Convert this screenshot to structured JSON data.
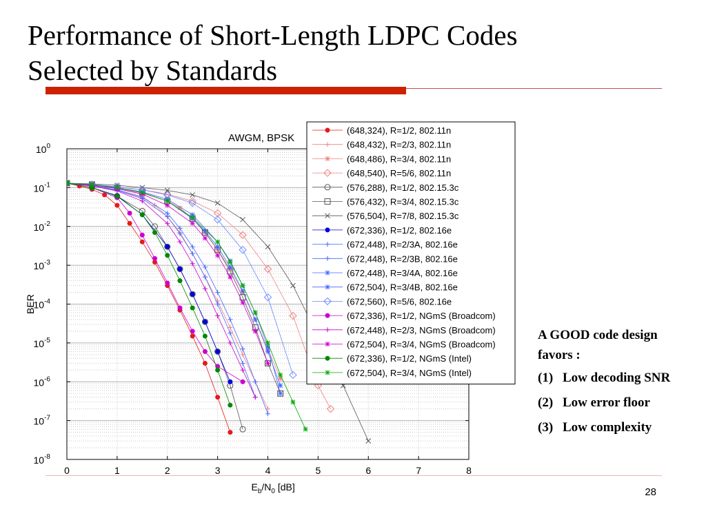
{
  "slide": {
    "title_line1": "Performance of Short-Length LDPC Codes",
    "title_line2": "Selected by Standards",
    "page_number": "28",
    "accent_color": "#cc2200"
  },
  "side_note": {
    "heading": "A GOOD code design favors :",
    "items": [
      {
        "num": "(1)",
        "text": "Low decoding SNR"
      },
      {
        "num": "(2)",
        "text": "Low error floor"
      },
      {
        "num": "(3)",
        "text": "Low complexity"
      }
    ]
  },
  "chart_data": {
    "type": "line",
    "title": "AWGM, BPSK",
    "xlabel": "Eb/N0 [dB]",
    "ylabel": "BER",
    "xlim": [
      0,
      8
    ],
    "ylim": [
      1e-08,
      1
    ],
    "y_scale": "log",
    "grid": true,
    "legend_position": "top-right",
    "x_ticks": [
      "0",
      "1",
      "2",
      "3",
      "4",
      "5",
      "6",
      "7",
      "8"
    ],
    "y_ticks": [
      {
        "base": "10",
        "exp": "0"
      },
      {
        "base": "10",
        "exp": "-1"
      },
      {
        "base": "10",
        "exp": "-2"
      },
      {
        "base": "10",
        "exp": "-3"
      },
      {
        "base": "10",
        "exp": "-4"
      },
      {
        "base": "10",
        "exp": "-5"
      },
      {
        "base": "10",
        "exp": "-6"
      },
      {
        "base": "10",
        "exp": "-7"
      },
      {
        "base": "10",
        "exp": "-8"
      }
    ],
    "series": [
      {
        "name": "(648,324), R=1/2, 802.11n",
        "color": "#e41a1c",
        "marker": "dot",
        "x": [
          0,
          0.25,
          0.5,
          0.75,
          1.0,
          1.25,
          1.5,
          1.75,
          2.0,
          2.25,
          2.5,
          2.75,
          3.0,
          3.25
        ],
        "y": [
          0.13,
          0.11,
          0.09,
          0.065,
          0.035,
          0.012,
          0.004,
          0.0012,
          0.0003,
          7e-05,
          1.5e-05,
          3e-06,
          4e-07,
          5e-08
        ]
      },
      {
        "name": "(648,432), R=2/3, 802.11n",
        "color": "#f08080",
        "marker": "plus",
        "x": [
          0,
          0.5,
          1.0,
          1.5,
          1.75,
          2.0,
          2.25,
          2.5,
          2.75,
          3.0,
          3.25,
          3.5,
          3.75,
          4.0
        ],
        "y": [
          0.13,
          0.11,
          0.085,
          0.055,
          0.035,
          0.018,
          0.007,
          0.002,
          0.0005,
          0.00012,
          2.5e-05,
          5e-06,
          1e-06,
          2e-07
        ]
      },
      {
        "name": "(648,486), R=3/4, 802.11n",
        "color": "#f08080",
        "marker": "star",
        "x": [
          0,
          0.5,
          1.0,
          1.5,
          2.0,
          2.25,
          2.5,
          2.75,
          3.0,
          3.25,
          3.5,
          3.75,
          4.0,
          4.25
        ],
        "y": [
          0.13,
          0.115,
          0.095,
          0.072,
          0.045,
          0.03,
          0.016,
          0.007,
          0.0025,
          0.0008,
          0.0002,
          4e-05,
          7e-06,
          1.2e-06
        ]
      },
      {
        "name": "(648,540), R=5/6, 802.11n",
        "color": "#f08080",
        "marker": "diamond",
        "x": [
          0,
          0.5,
          1.0,
          1.5,
          2.0,
          2.5,
          3.0,
          3.5,
          4.0,
          4.5,
          5.0,
          5.25
        ],
        "y": [
          0.13,
          0.12,
          0.105,
          0.088,
          0.068,
          0.045,
          0.022,
          0.006,
          0.0008,
          5e-05,
          8e-07,
          2e-07
        ]
      },
      {
        "name": "(576,288), R=1/2, 802.15.3c",
        "color": "#555555",
        "marker": "circle",
        "x": [
          0,
          0.5,
          1.0,
          1.5,
          1.75,
          2.0,
          2.25,
          2.5,
          2.75,
          3.0,
          3.25,
          3.5
        ],
        "y": [
          0.13,
          0.1,
          0.06,
          0.025,
          0.01,
          0.003,
          0.0008,
          0.00018,
          3.5e-05,
          6e-06,
          8e-07,
          6e-08
        ]
      },
      {
        "name": "(576,432), R=3/4, 802.15.3c",
        "color": "#555555",
        "marker": "square",
        "x": [
          0,
          0.5,
          1.0,
          1.5,
          2.0,
          2.5,
          2.75,
          3.0,
          3.25,
          3.5,
          3.75,
          4.0,
          4.25
        ],
        "y": [
          0.13,
          0.12,
          0.1,
          0.075,
          0.045,
          0.016,
          0.007,
          0.0025,
          0.0007,
          0.00015,
          2.5e-05,
          3e-06,
          5e-07
        ]
      },
      {
        "name": "(576,504), R=7/8, 802.15.3c",
        "color": "#555555",
        "marker": "x",
        "x": [
          0,
          0.5,
          1.0,
          1.5,
          2.0,
          2.5,
          3.0,
          3.5,
          4.0,
          4.5,
          5.0,
          5.5,
          6.0
        ],
        "y": [
          0.13,
          0.125,
          0.115,
          0.1,
          0.085,
          0.065,
          0.04,
          0.015,
          0.003,
          0.0003,
          1.5e-05,
          8e-07,
          3e-08
        ]
      },
      {
        "name": "(672,336), R=1/2, 802.16e",
        "color": "#0000dd",
        "marker": "dot",
        "x": [
          0,
          0.5,
          1.0,
          1.5,
          2.0,
          2.25,
          2.5,
          2.75,
          3.0,
          3.25
        ],
        "y": [
          0.13,
          0.1,
          0.062,
          0.02,
          0.003,
          0.0008,
          0.00018,
          3.5e-05,
          6e-06,
          1e-06
        ]
      },
      {
        "name": "(672,448), R=2/3A, 802.16e",
        "color": "#4466ff",
        "marker": "plus",
        "x": [
          0,
          0.5,
          1.0,
          1.5,
          2.0,
          2.25,
          2.5,
          2.75,
          3.0,
          3.25,
          3.5,
          3.75
        ],
        "y": [
          0.13,
          0.11,
          0.085,
          0.052,
          0.018,
          0.0065,
          0.002,
          0.0005,
          0.0001,
          1.8e-05,
          3e-06,
          4e-07
        ]
      },
      {
        "name": "(672,448), R=2/3B, 802.16e",
        "color": "#4466ff",
        "marker": "plus",
        "x": [
          0,
          0.5,
          1.0,
          1.5,
          2.0,
          2.25,
          2.5,
          2.75,
          3.0,
          3.25,
          3.5,
          3.75,
          4.0
        ],
        "y": [
          0.13,
          0.112,
          0.088,
          0.058,
          0.022,
          0.009,
          0.003,
          0.0009,
          0.0002,
          4e-05,
          7e-06,
          1e-06,
          1.5e-07
        ]
      },
      {
        "name": "(672,448), R=3/4A, 802.16e",
        "color": "#4466ff",
        "marker": "star",
        "x": [
          0,
          0.5,
          1.0,
          1.5,
          2.0,
          2.5,
          2.75,
          3.0,
          3.25,
          3.5,
          3.75,
          4.0,
          4.25
        ],
        "y": [
          0.13,
          0.118,
          0.098,
          0.075,
          0.045,
          0.016,
          0.0075,
          0.003,
          0.0009,
          0.00022,
          4e-05,
          6e-06,
          8e-07
        ]
      },
      {
        "name": "(672,504), R=3/4B, 802.16e",
        "color": "#4466ff",
        "marker": "star",
        "x": [
          0,
          0.5,
          1.0,
          1.5,
          2.0,
          2.5,
          3.0,
          3.25,
          3.5,
          3.75,
          4.0,
          4.25
        ],
        "y": [
          0.13,
          0.12,
          0.1,
          0.078,
          0.05,
          0.02,
          0.004,
          0.0013,
          0.0003,
          6e-05,
          8e-06,
          5e-07
        ]
      },
      {
        "name": "(672,560), R=5/6, 802.16e",
        "color": "#6688ff",
        "marker": "diamond",
        "x": [
          0,
          0.5,
          1.0,
          1.5,
          2.0,
          2.5,
          3.0,
          3.5,
          4.0,
          4.5
        ],
        "y": [
          0.13,
          0.12,
          0.105,
          0.088,
          0.065,
          0.04,
          0.015,
          0.0025,
          0.00015,
          1.5e-06
        ]
      },
      {
        "name": "(672,336), R=1/2, NGmS (Broadcom)",
        "color": "#cc00cc",
        "marker": "dot",
        "x": [
          0,
          0.5,
          1.0,
          1.25,
          1.5,
          1.75,
          2.0,
          2.25,
          2.5,
          2.75,
          3.0,
          3.5
        ],
        "y": [
          0.13,
          0.1,
          0.055,
          0.022,
          0.006,
          0.0015,
          0.00035,
          8e-05,
          2e-05,
          6e-06,
          2.5e-06,
          1e-06
        ]
      },
      {
        "name": "(672,448), R=2/3, NGmS (Broadcom)",
        "color": "#cc00cc",
        "marker": "plus",
        "x": [
          0,
          0.5,
          1.0,
          1.5,
          2.0,
          2.25,
          2.5,
          2.75,
          3.0,
          3.25,
          3.5,
          3.75
        ],
        "y": [
          0.13,
          0.11,
          0.082,
          0.045,
          0.012,
          0.004,
          0.0011,
          0.00025,
          5e-05,
          1e-05,
          2e-06,
          4e-07
        ]
      },
      {
        "name": "(672,504), R=3/4, NGmS (Broadcom)",
        "color": "#cc00cc",
        "marker": "star",
        "x": [
          0,
          0.5,
          1.0,
          1.5,
          2.0,
          2.5,
          2.75,
          3.0,
          3.25,
          3.5,
          3.75,
          4.0
        ],
        "y": [
          0.13,
          0.116,
          0.094,
          0.068,
          0.035,
          0.012,
          0.005,
          0.0018,
          0.0005,
          0.00011,
          2e-05,
          3e-06
        ]
      },
      {
        "name": "(672,336), R=1/2, NGmS (Intel)",
        "color": "#008800",
        "marker": "dot",
        "x": [
          0,
          0.5,
          1.0,
          1.5,
          1.75,
          2.0,
          2.25,
          2.5,
          2.75,
          3.0,
          3.25
        ],
        "y": [
          0.13,
          0.1,
          0.06,
          0.02,
          0.007,
          0.0018,
          0.0004,
          8e-05,
          1.5e-05,
          2e-06,
          2.5e-07
        ]
      },
      {
        "name": "(672,504), R=3/4, NGmS (Intel)",
        "color": "#00aa00",
        "marker": "star",
        "x": [
          0,
          0.5,
          1.0,
          1.5,
          2.0,
          2.5,
          3.0,
          3.25,
          3.5,
          3.75,
          4.0,
          4.25,
          4.5,
          4.75
        ],
        "y": [
          0.13,
          0.12,
          0.1,
          0.075,
          0.045,
          0.017,
          0.004,
          0.0012,
          0.0003,
          6e-05,
          1e-05,
          1.5e-06,
          3e-07,
          6e-08
        ]
      }
    ]
  }
}
